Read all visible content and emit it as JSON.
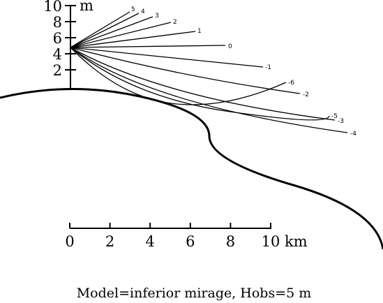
{
  "diagram": {
    "caption": "Model=inferior mirage, Hobs=5 m",
    "height_axis": {
      "unit": "m",
      "tick_labels": [
        "2",
        "4",
        "6",
        "8",
        "10"
      ]
    },
    "distance_axis": {
      "unit": "km",
      "tick_labels": [
        "0",
        "2",
        "4",
        "6",
        "8",
        "10"
      ]
    },
    "rays": [
      {
        "label": "5"
      },
      {
        "label": "4"
      },
      {
        "label": "3"
      },
      {
        "label": "2"
      },
      {
        "label": "1"
      },
      {
        "label": "0"
      },
      {
        "label": "-1"
      },
      {
        "label": "-2"
      },
      {
        "label": "-3"
      },
      {
        "label": "-4"
      },
      {
        "label": "-5"
      },
      {
        "label": "-6"
      }
    ]
  }
}
